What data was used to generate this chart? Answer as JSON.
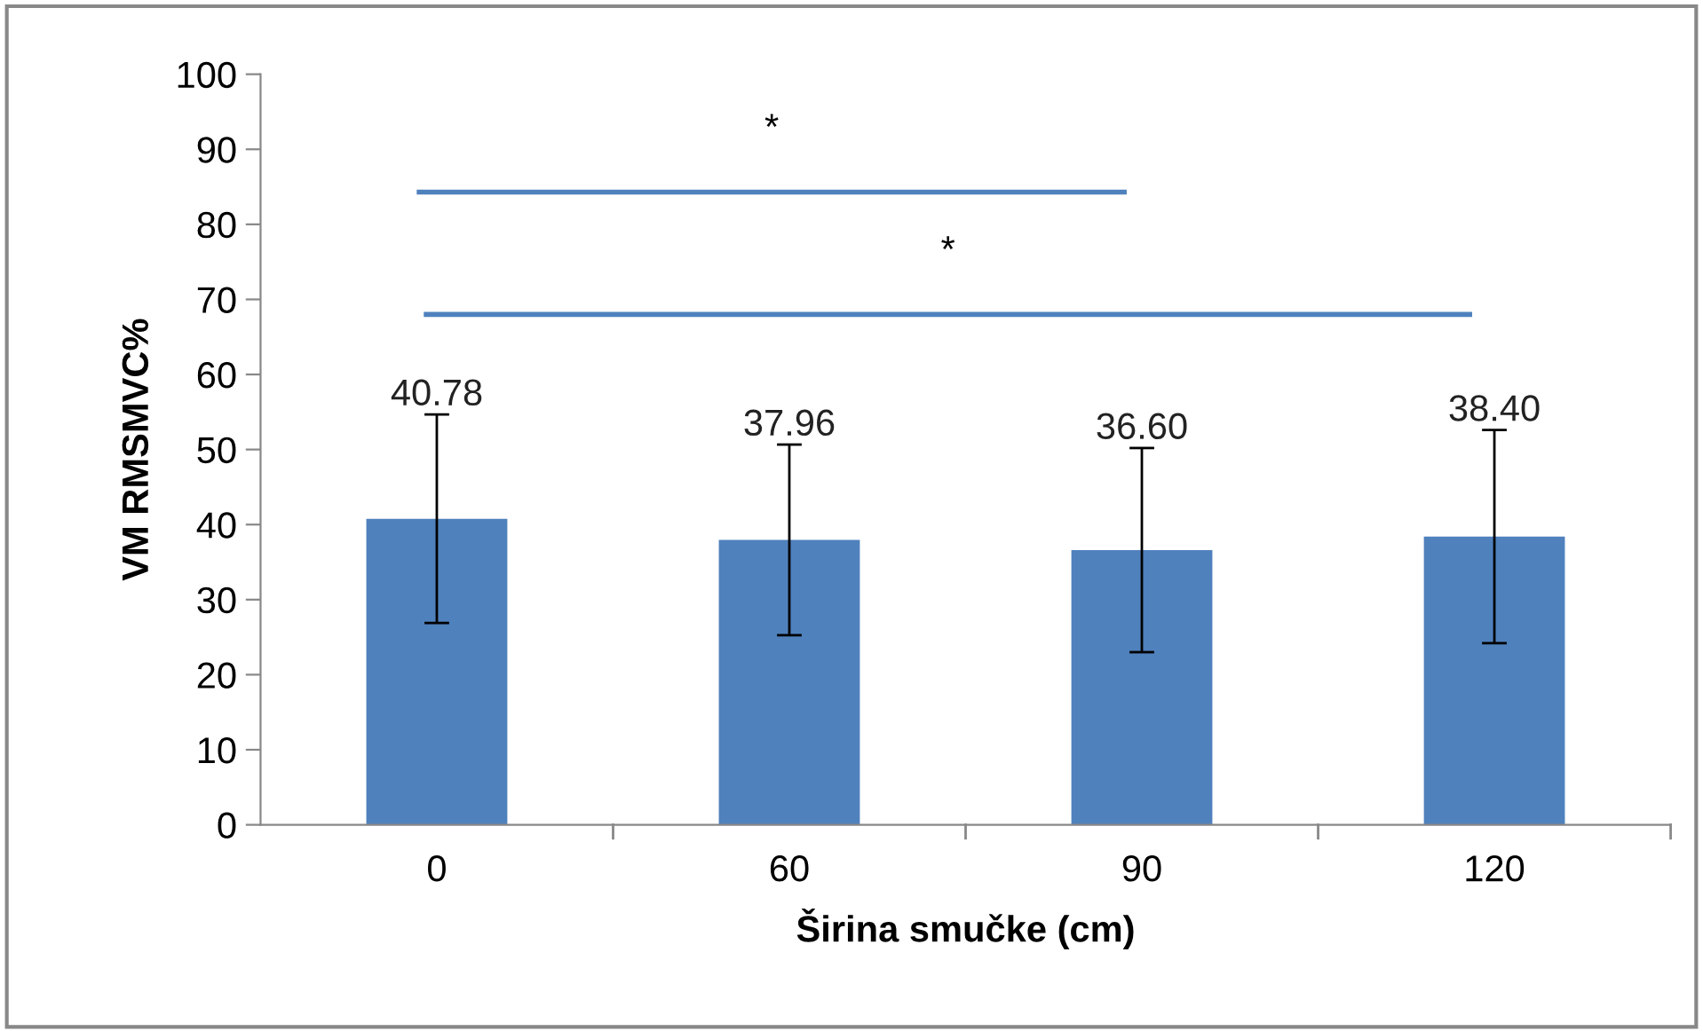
{
  "chart_data": {
    "type": "bar",
    "xlabel": "Širina smučke (cm)",
    "ylabel": "VM RMSMVC%",
    "categories": [
      "0",
      "60",
      "90",
      "120"
    ],
    "values": [
      40.78,
      37.96,
      36.6,
      38.4
    ],
    "value_labels": [
      "40.78",
      "37.96",
      "36.60",
      "38.40"
    ],
    "errors": [
      13.9,
      12.7,
      13.6,
      14.2
    ],
    "color": "#4f81bd",
    "ylim": [
      0,
      100
    ],
    "yticks": [
      0,
      10,
      20,
      30,
      40,
      50,
      60,
      70,
      80,
      90,
      100
    ],
    "ref_lines": [
      {
        "axis": "y",
        "value": 84.3,
        "label": "*",
        "color": "#4f81bd"
      },
      {
        "axis": "y",
        "value": 68.0,
        "label": "*",
        "color": "#4f81bd"
      }
    ],
    "grid": false
  }
}
